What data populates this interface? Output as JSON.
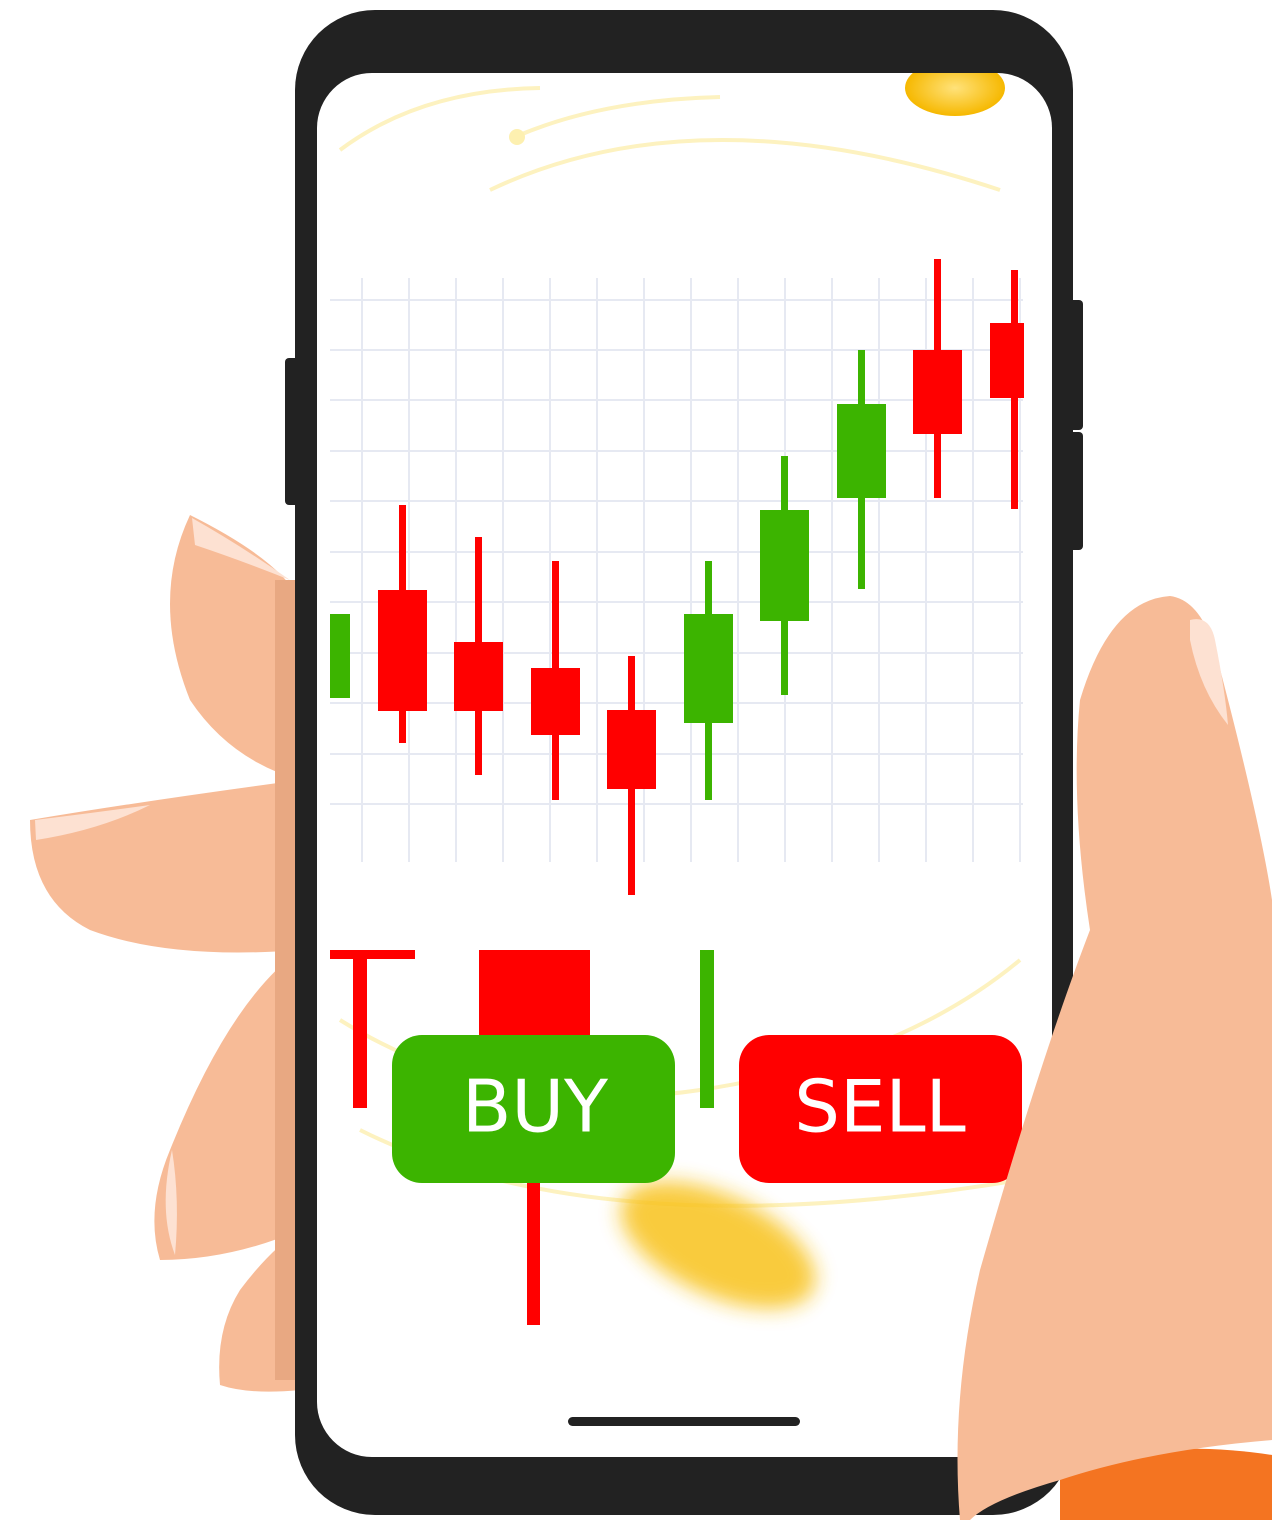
{
  "buttons": {
    "buy": "BUY",
    "sell": "SELL"
  }
}
